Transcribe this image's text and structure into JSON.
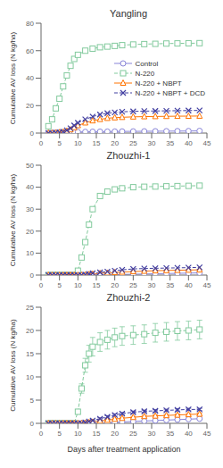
{
  "chart_data": [
    {
      "type": "line",
      "title": "Yangling",
      "ylabel": "Cumulative AV loss (N kg/ha)",
      "xlim": [
        0,
        45
      ],
      "xticks": [
        0,
        5,
        10,
        15,
        20,
        25,
        30,
        35,
        40,
        45
      ],
      "ylim": [
        0,
        80
      ],
      "yticks": [
        0,
        20,
        40,
        60,
        80
      ],
      "grid": false,
      "legend": "right",
      "x": [
        2,
        3,
        4,
        5,
        6,
        7,
        8,
        9,
        10,
        12,
        14,
        16,
        18,
        20,
        22,
        25,
        28,
        31,
        34,
        37,
        40,
        43
      ],
      "series": [
        {
          "name": "Control",
          "color": "#8884d8",
          "marker": "circle",
          "line_style": "solid",
          "values": [
            0.0,
            0.1,
            0.2,
            0.3,
            0.4,
            0.5,
            0.6,
            0.7,
            0.8,
            0.9,
            1.0,
            1.05,
            1.1,
            1.15,
            1.2,
            1.25,
            1.3,
            1.35,
            1.4,
            1.45,
            1.5,
            1.6
          ]
        },
        {
          "name": "N-220",
          "color": "#82ca9d",
          "marker": "square",
          "line_style": "dashed",
          "values": [
            5.0,
            10.0,
            18.0,
            25.0,
            34.0,
            42.0,
            49.0,
            54.0,
            57.0,
            60.0,
            61.5,
            62.5,
            63.0,
            63.5,
            64.0,
            64.5,
            64.8,
            65.0,
            65.2,
            65.3,
            65.4,
            65.5
          ]
        },
        {
          "name": "N-220 + NBPT",
          "color": "#ff7300",
          "marker": "triangle",
          "line_style": "solid",
          "values": [
            0.0,
            0.1,
            0.3,
            0.5,
            0.8,
            1.5,
            2.5,
            4.0,
            5.5,
            7.5,
            9.0,
            10.0,
            10.8,
            11.2,
            11.5,
            11.8,
            12.0,
            12.1,
            12.2,
            12.3,
            12.35,
            12.4
          ]
        },
        {
          "name": "N-220 + NBPT + DCD",
          "color": "#413ea0",
          "marker": "x",
          "line_style": "dashed",
          "values": [
            0.0,
            0.1,
            0.3,
            0.6,
            1.0,
            2.0,
            3.5,
            5.5,
            7.5,
            10.0,
            12.0,
            13.5,
            14.5,
            15.0,
            15.5,
            15.8,
            16.0,
            16.1,
            16.2,
            16.3,
            16.4,
            16.5
          ]
        }
      ]
    },
    {
      "type": "line",
      "title": "Zhouzhi-1",
      "ylabel": "Cumulative AV loss (N kg/ha)",
      "xlim": [
        0,
        45
      ],
      "xticks": [
        0,
        5,
        10,
        15,
        20,
        25,
        30,
        35,
        40,
        45
      ],
      "ylim": [
        0,
        50
      ],
      "yticks": [
        0,
        10,
        20,
        30,
        40,
        50
      ],
      "grid": false,
      "x": [
        2,
        3,
        4,
        5,
        6,
        7,
        8,
        9,
        10,
        11,
        12,
        13,
        14,
        16,
        18,
        20,
        22,
        25,
        28,
        31,
        34,
        37,
        40,
        43
      ],
      "series": [
        {
          "name": "Control",
          "color": "#8884d8",
          "marker": "circle",
          "line_style": "solid",
          "values": [
            0.0,
            0.0,
            0.0,
            0.0,
            0.0,
            0.0,
            0.0,
            0.0,
            0.0,
            0.0,
            0.0,
            0.0,
            0.0,
            0.0,
            0.1,
            0.2,
            0.3,
            0.4,
            0.5,
            0.6,
            0.7,
            0.8,
            0.9,
            1.0
          ]
        },
        {
          "name": "N-220",
          "color": "#82ca9d",
          "marker": "square",
          "line_style": "dashed",
          "values": [
            0.0,
            0.0,
            0.0,
            0.0,
            0.0,
            0.0,
            0.0,
            0.0,
            2.0,
            8.0,
            15.0,
            23.0,
            30.0,
            36.0,
            38.0,
            39.0,
            39.5,
            40.0,
            40.2,
            40.3,
            40.4,
            40.5,
            40.6,
            40.7
          ]
        },
        {
          "name": "N-220 + NBPT",
          "color": "#ff7300",
          "marker": "triangle",
          "line_style": "solid",
          "values": [
            0.0,
            0.0,
            0.0,
            0.0,
            0.0,
            0.0,
            0.0,
            0.0,
            0.0,
            0.0,
            0.1,
            0.3,
            0.5,
            0.8,
            1.0,
            1.2,
            1.4,
            1.6,
            1.8,
            2.0,
            2.1,
            2.2,
            2.3,
            2.4
          ]
        },
        {
          "name": "N-220 + NBPT + DCD",
          "color": "#413ea0",
          "marker": "x",
          "line_style": "dashed",
          "values": [
            0.0,
            0.0,
            0.0,
            0.0,
            0.0,
            0.0,
            0.0,
            0.0,
            0.0,
            0.0,
            0.2,
            0.5,
            0.8,
            1.2,
            1.6,
            2.0,
            2.4,
            2.8,
            3.0,
            3.1,
            3.2,
            3.3,
            3.4,
            3.5
          ]
        }
      ]
    },
    {
      "type": "line",
      "title": "Zhouzhi-2",
      "ylabel": "Cumulative AV loss (N kg/ha)",
      "xlabel": "Days after treatment application",
      "xlim": [
        0,
        45
      ],
      "xticks": [
        0,
        5,
        10,
        15,
        20,
        25,
        30,
        35,
        40,
        45
      ],
      "ylim": [
        0,
        25
      ],
      "yticks": [
        0,
        5,
        10,
        15,
        20,
        25
      ],
      "grid": false,
      "x": [
        2,
        3,
        4,
        5,
        6,
        7,
        8,
        9,
        10,
        11,
        12,
        13,
        14,
        16,
        18,
        20,
        22,
        25,
        28,
        31,
        34,
        37,
        40,
        43
      ],
      "series": [
        {
          "name": "Control",
          "color": "#8884d8",
          "marker": "circle",
          "line_style": "solid",
          "values": [
            0.0,
            0.0,
            0.0,
            0.0,
            0.0,
            0.0,
            0.0,
            0.0,
            0.0,
            0.0,
            0.0,
            0.0,
            0.0,
            0.0,
            0.1,
            0.2,
            0.3,
            0.4,
            0.5,
            0.6,
            0.7,
            0.8,
            0.9,
            1.0
          ]
        },
        {
          "name": "N-220",
          "color": "#82ca9d",
          "marker": "square",
          "line_style": "dashed",
          "values": [
            0.0,
            0.0,
            0.0,
            0.0,
            0.0,
            0.0,
            0.0,
            0.0,
            2.5,
            7.5,
            12.5,
            15.0,
            16.5,
            17.5,
            18.0,
            18.5,
            18.8,
            19.0,
            19.2,
            19.5,
            19.7,
            19.9,
            20.0,
            20.2
          ],
          "y_err": [
            0,
            0,
            0,
            0,
            0,
            0,
            0,
            0,
            0.5,
            1.0,
            1.5,
            1.8,
            2.0,
            2.0,
            2.0,
            2.0,
            2.0,
            2.0,
            2.0,
            2.0,
            2.0,
            2.0,
            2.0,
            2.0
          ]
        },
        {
          "name": "N-220 + NBPT",
          "color": "#ff7300",
          "marker": "triangle",
          "line_style": "solid",
          "values": [
            0.0,
            0.0,
            0.0,
            0.0,
            0.0,
            0.0,
            0.0,
            0.0,
            0.0,
            0.0,
            0.1,
            0.2,
            0.3,
            0.5,
            0.7,
            0.9,
            1.1,
            1.3,
            1.5,
            1.6,
            1.7,
            1.8,
            1.9,
            2.0
          ],
          "y_err": [
            0,
            0,
            0,
            0,
            0,
            0,
            0,
            0,
            0,
            0,
            0.05,
            0.08,
            0.1,
            0.15,
            0.2,
            0.2,
            0.2,
            0.2,
            0.2,
            0.2,
            0.2,
            0.2,
            0.2,
            0.2
          ]
        },
        {
          "name": "N-220 + NBPT + DCD",
          "color": "#413ea0",
          "marker": "x",
          "line_style": "dashed",
          "values": [
            0.0,
            0.0,
            0.0,
            0.0,
            0.0,
            0.0,
            0.0,
            0.0,
            0.0,
            0.0,
            0.2,
            0.4,
            0.6,
            1.0,
            1.4,
            1.8,
            2.1,
            2.4,
            2.6,
            2.7,
            2.8,
            2.9,
            3.0,
            3.0
          ],
          "y_err": [
            0,
            0,
            0,
            0,
            0,
            0,
            0,
            0,
            0,
            0,
            0.05,
            0.1,
            0.15,
            0.2,
            0.25,
            0.25,
            0.25,
            0.25,
            0.25,
            0.25,
            0.25,
            0.25,
            0.25,
            0.25
          ]
        }
      ]
    }
  ]
}
